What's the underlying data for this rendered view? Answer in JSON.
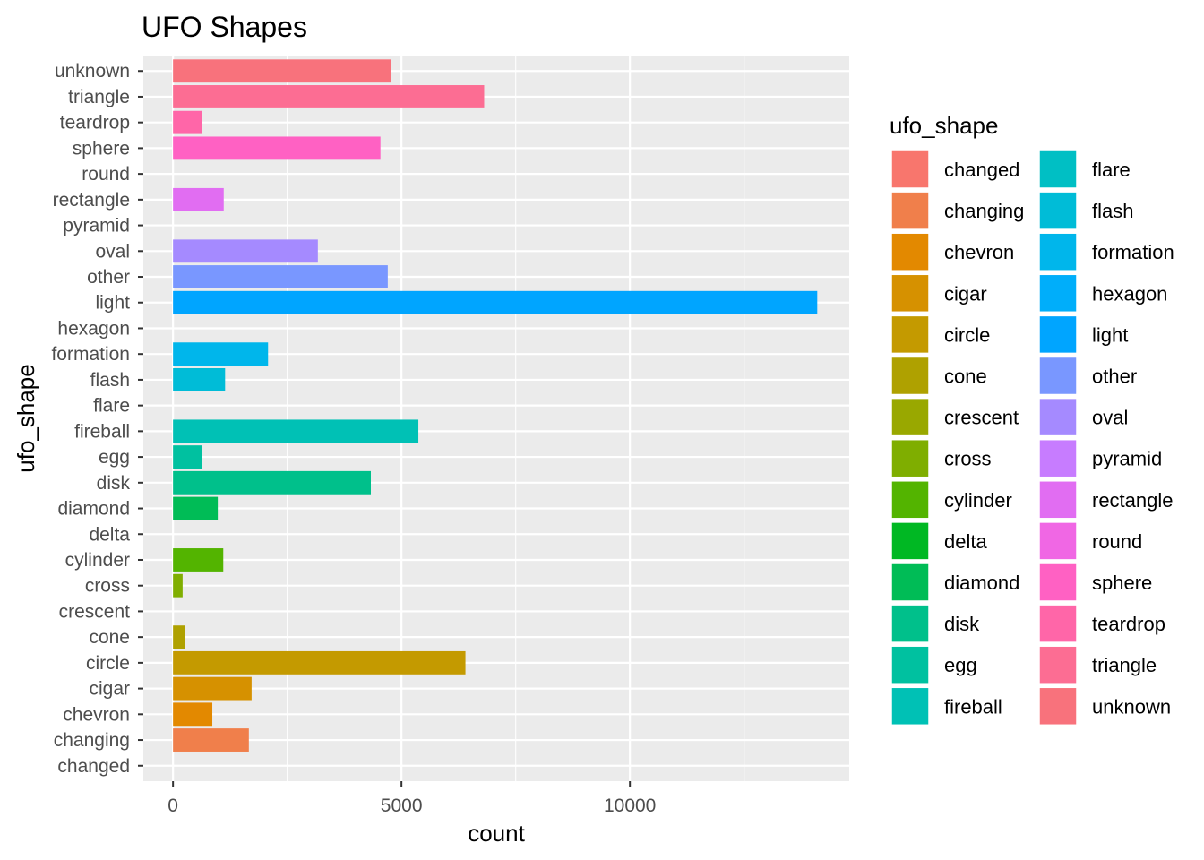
{
  "chart_data": {
    "type": "bar",
    "orientation": "horizontal",
    "title": "UFO Shapes",
    "xlabel": "count",
    "ylabel": "ufo_shape",
    "xlim": [
      -650,
      14800
    ],
    "x_ticks": [
      {
        "value": 0,
        "label": "0"
      },
      {
        "value": 5000,
        "label": "5000"
      },
      {
        "value": 10000,
        "label": "10000"
      }
    ],
    "grid": true,
    "legend_title": "ufo_shape",
    "legend_position": "right",
    "categories": [
      "changed",
      "changing",
      "chevron",
      "cigar",
      "circle",
      "cone",
      "crescent",
      "cross",
      "cylinder",
      "delta",
      "diamond",
      "disk",
      "egg",
      "fireball",
      "flare",
      "flash",
      "formation",
      "hexagon",
      "light",
      "other",
      "oval",
      "pyramid",
      "rectangle",
      "round",
      "sphere",
      "teardrop",
      "triangle",
      "unknown"
    ],
    "values": [
      1,
      1660,
      860,
      1720,
      6400,
      270,
      2,
      210,
      1100,
      1,
      980,
      4330,
      630,
      5370,
      1,
      1140,
      2080,
      1,
      14100,
      4700,
      3170,
      1,
      1110,
      1,
      4540,
      630,
      6810,
      4780
    ],
    "colors": [
      "#F8766D",
      "#F07F4B",
      "#E38900",
      "#D69100",
      "#C49A00",
      "#AFA100",
      "#99A800",
      "#7FAE00",
      "#53B400",
      "#00B823",
      "#00BC56",
      "#00C08B",
      "#00C1A0",
      "#00C1B5",
      "#00BFC4",
      "#00BCD7",
      "#00B6EB",
      "#00AEFA",
      "#00A5FF",
      "#7997FF",
      "#A58AFF",
      "#C77CFF",
      "#E16DF2",
      "#F067E4",
      "#FF61C3",
      "#FF66A8",
      "#FC6D93",
      "#F8727C"
    ]
  }
}
